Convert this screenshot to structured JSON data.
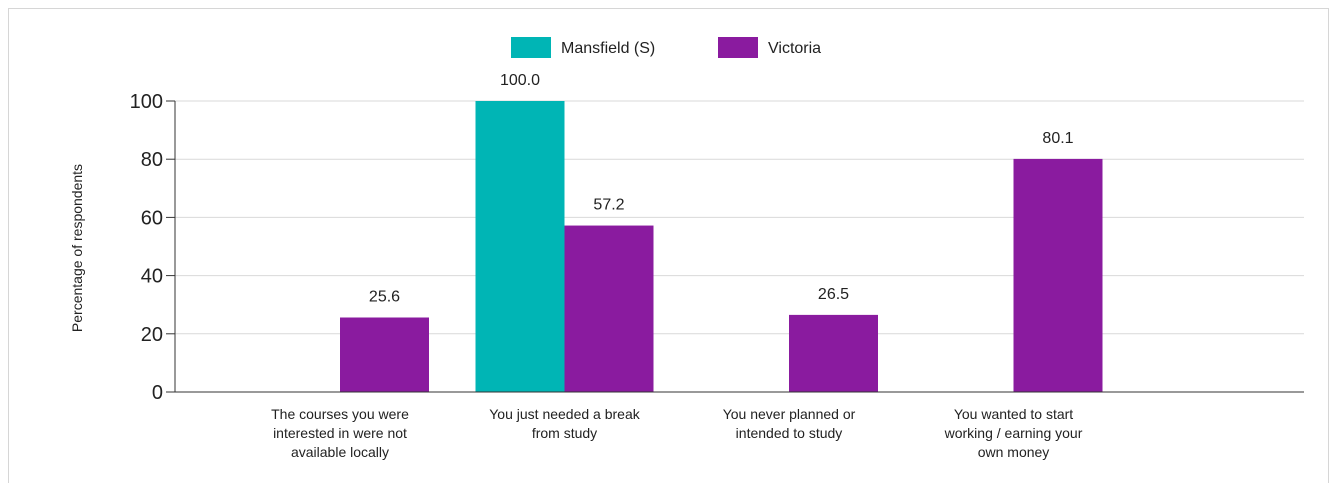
{
  "chart_data": {
    "type": "bar",
    "categories": [
      [
        "The courses you were",
        "interested in were not",
        "available locally"
      ],
      [
        "You just needed a break",
        "from study"
      ],
      [
        "You never planned or",
        "intended to study"
      ],
      [
        "You wanted to start",
        "working / earning your",
        "own money"
      ]
    ],
    "series": [
      {
        "name": "Mansfield (S)",
        "color": "#00b5b5",
        "values": [
          null,
          100.0,
          null,
          null
        ],
        "labels": [
          "",
          "100.0",
          "",
          ""
        ]
      },
      {
        "name": "Victoria",
        "color": "#8a1b9f",
        "values": [
          25.6,
          57.2,
          26.5,
          80.1
        ],
        "labels": [
          "25.6",
          "57.2",
          "26.5",
          "80.1"
        ]
      }
    ],
    "ylabel": "Percentage of respondents",
    "ylim": [
      0,
      100
    ],
    "yticks": [
      0,
      20,
      40,
      60,
      80,
      100
    ],
    "grid": true,
    "legend": "top-center"
  }
}
